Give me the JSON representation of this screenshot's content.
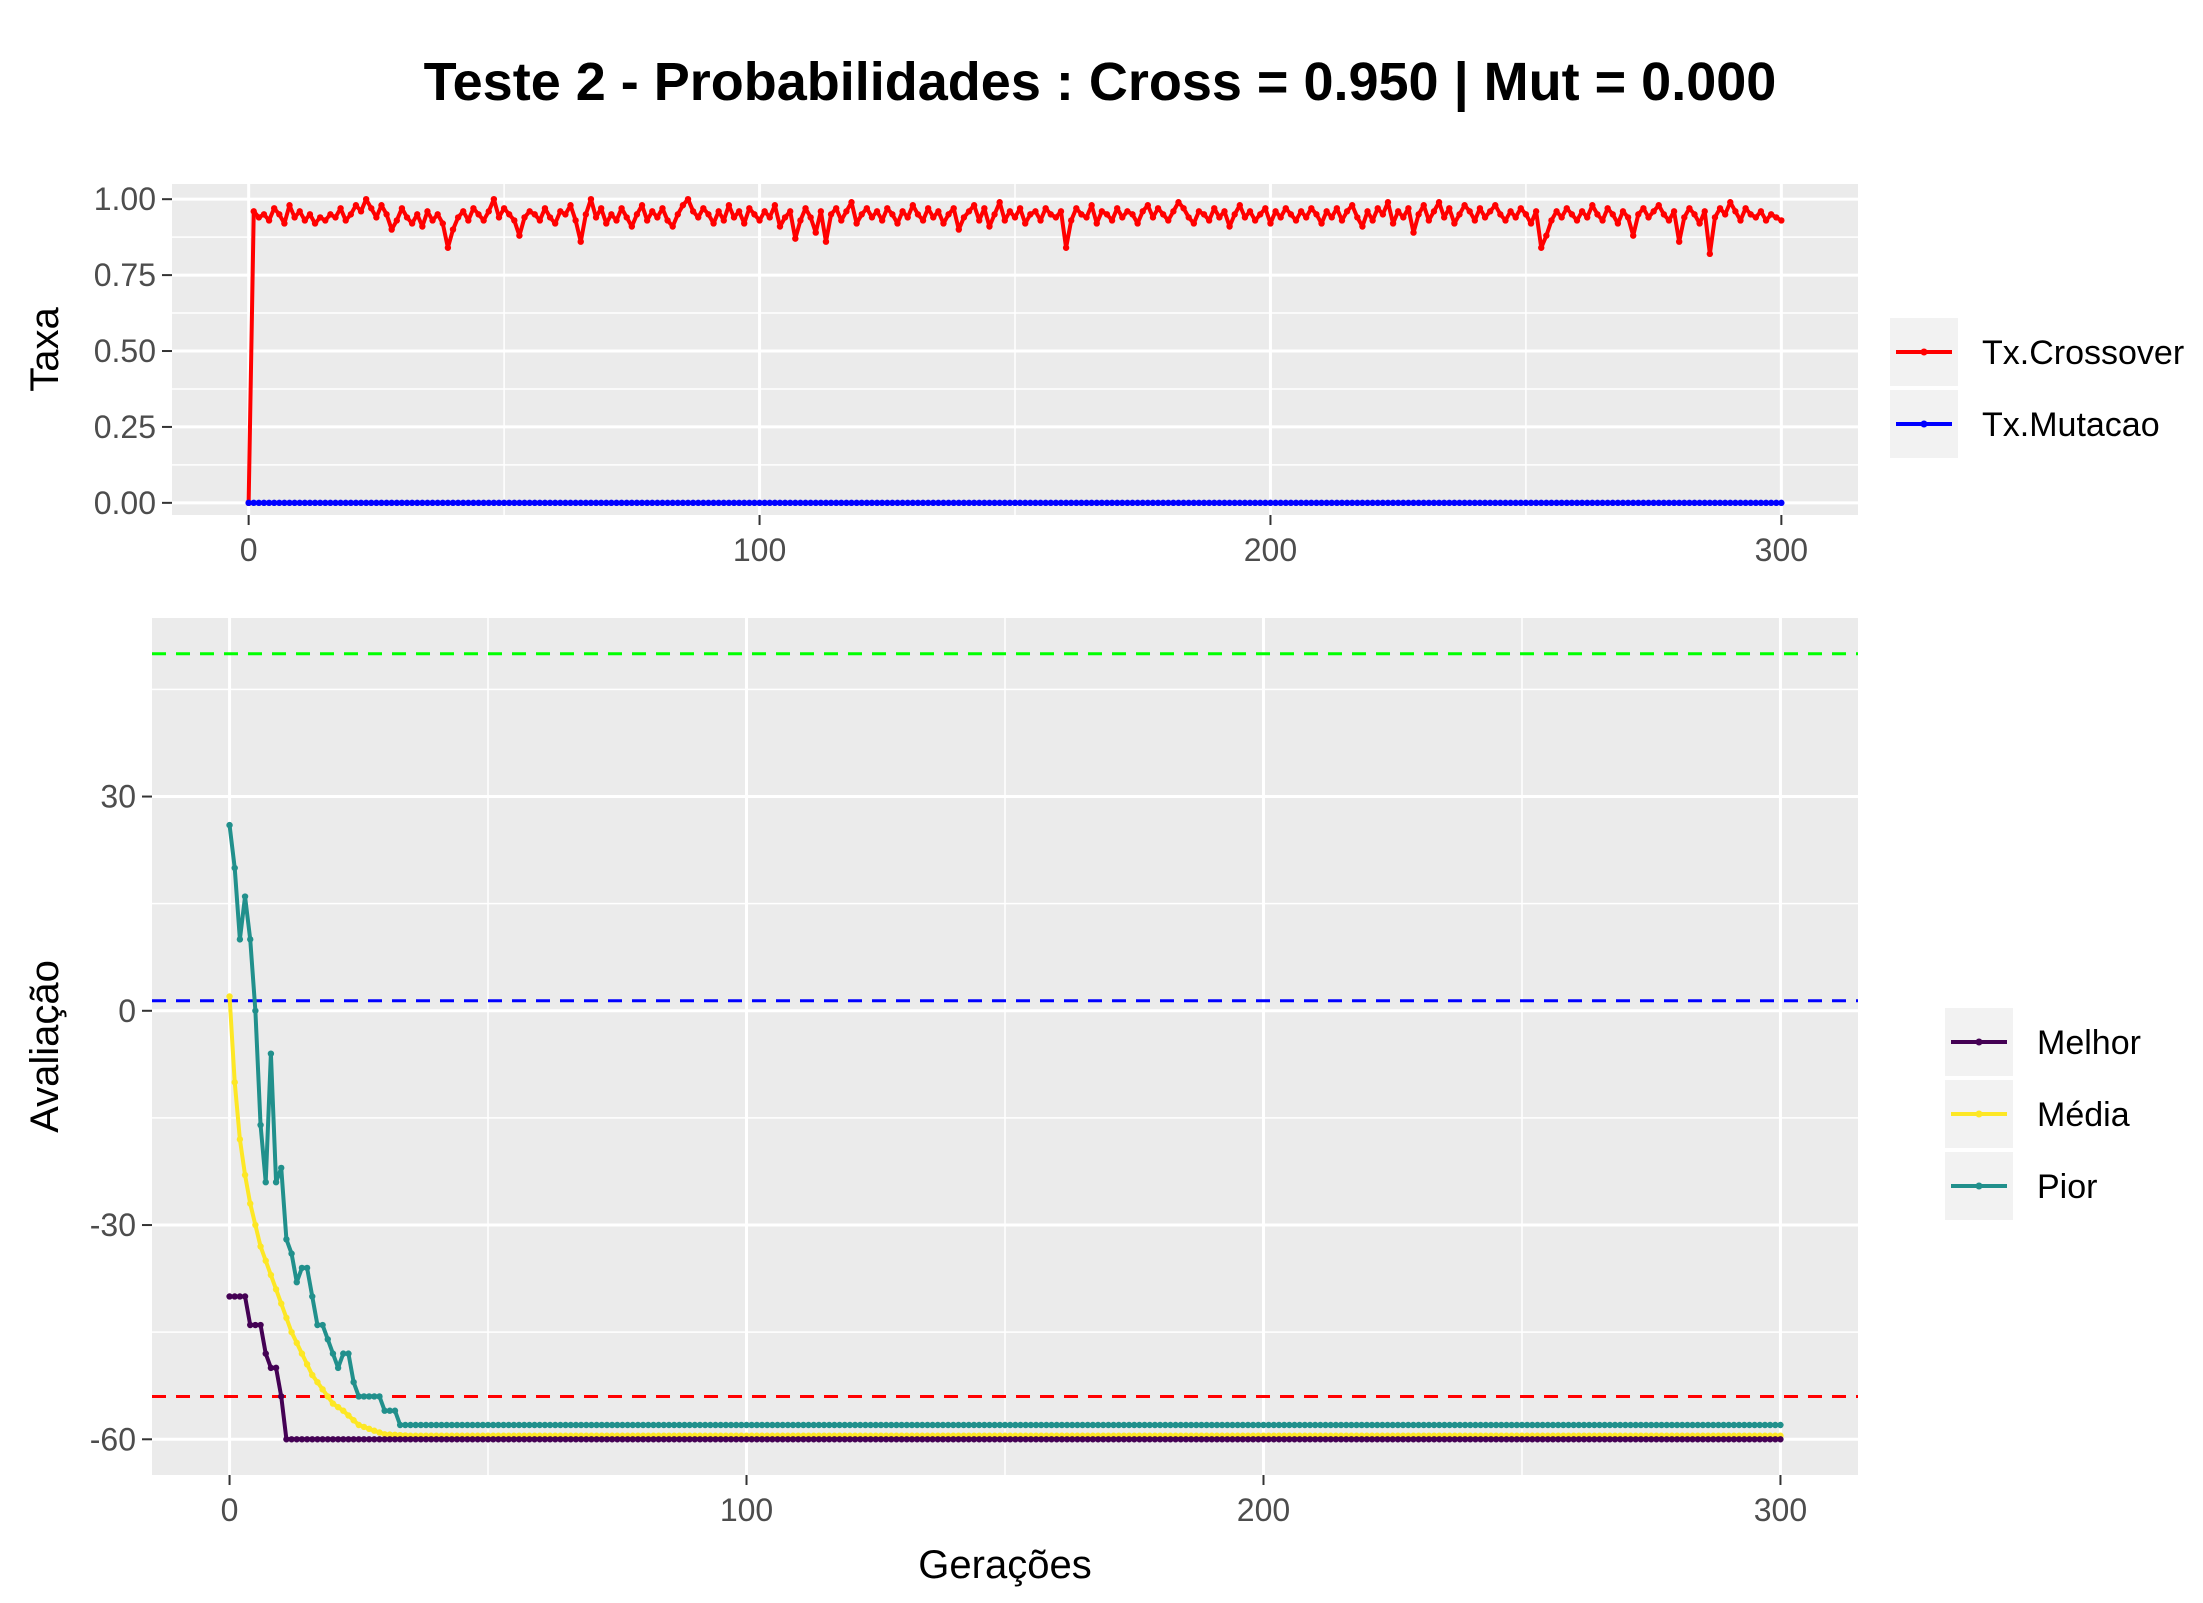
{
  "title": "Teste 2 - Probabilidades : Cross = 0.950 | Mut = 0.000",
  "chart_data": [
    {
      "type": "line",
      "ylabel": "Taxa",
      "xlabel": "",
      "xlim": [
        -15,
        315
      ],
      "ylim": [
        -0.04,
        1.05
      ],
      "xticks": [
        0,
        100,
        200,
        300
      ],
      "yticks": [
        0,
        0.25,
        0.5,
        0.75,
        1.0
      ],
      "ytick_labels": [
        "0.00",
        "0.25",
        "0.50",
        "0.75",
        "1.00"
      ],
      "xtick_labels": [
        "0",
        "100",
        "200",
        "300"
      ],
      "grid": true,
      "legend_position": "right",
      "series": [
        {
          "name": "Tx.Crossover",
          "color": "#ff0000",
          "x": [
            0,
            1,
            2,
            3,
            4,
            5,
            6,
            7,
            8,
            9,
            10,
            11,
            12,
            13,
            14,
            15,
            16,
            17,
            18,
            19,
            20,
            21,
            22,
            23,
            24,
            25,
            26,
            27,
            28,
            29,
            30,
            31,
            32,
            33,
            34,
            35,
            36,
            37,
            38,
            39,
            40,
            41,
            42,
            43,
            44,
            45,
            46,
            47,
            48,
            49,
            50,
            51,
            52,
            53,
            54,
            55,
            56,
            57,
            58,
            59,
            60,
            61,
            62,
            63,
            64,
            65,
            66,
            67,
            68,
            69,
            70,
            71,
            72,
            73,
            74,
            75,
            76,
            77,
            78,
            79,
            80,
            81,
            82,
            83,
            84,
            85,
            86,
            87,
            88,
            89,
            90,
            91,
            92,
            93,
            94,
            95,
            96,
            97,
            98,
            99,
            100,
            101,
            102,
            103,
            104,
            105,
            106,
            107,
            108,
            109,
            110,
            111,
            112,
            113,
            114,
            115,
            116,
            117,
            118,
            119,
            120,
            121,
            122,
            123,
            124,
            125,
            126,
            127,
            128,
            129,
            130,
            131,
            132,
            133,
            134,
            135,
            136,
            137,
            138,
            139,
            140,
            141,
            142,
            143,
            144,
            145,
            146,
            147,
            148,
            149,
            150,
            151,
            152,
            153,
            154,
            155,
            156,
            157,
            158,
            159,
            160,
            161,
            162,
            163,
            164,
            165,
            166,
            167,
            168,
            169,
            170,
            171,
            172,
            173,
            174,
            175,
            176,
            177,
            178,
            179,
            180,
            181,
            182,
            183,
            184,
            185,
            186,
            187,
            188,
            189,
            190,
            191,
            192,
            193,
            194,
            195,
            196,
            197,
            198,
            199,
            200,
            201,
            202,
            203,
            204,
            205,
            206,
            207,
            208,
            209,
            210,
            211,
            212,
            213,
            214,
            215,
            216,
            217,
            218,
            219,
            220,
            221,
            222,
            223,
            224,
            225,
            226,
            227,
            228,
            229,
            230,
            231,
            232,
            233,
            234,
            235,
            236,
            237,
            238,
            239,
            240,
            241,
            242,
            243,
            244,
            245,
            246,
            247,
            248,
            249,
            250,
            251,
            252,
            253,
            254,
            255,
            256,
            257,
            258,
            259,
            260,
            261,
            262,
            263,
            264,
            265,
            266,
            267,
            268,
            269,
            270,
            271,
            272,
            273,
            274,
            275,
            276,
            277,
            278,
            279,
            280,
            281,
            282,
            283,
            284,
            285,
            286,
            287,
            288,
            289,
            290,
            291,
            292,
            293,
            294,
            295,
            296,
            297,
            298,
            299,
            300
          ],
          "y": [
            0,
            0.96,
            0.94,
            0.95,
            0.93,
            0.97,
            0.95,
            0.92,
            0.98,
            0.94,
            0.96,
            0.93,
            0.95,
            0.92,
            0.94,
            0.93,
            0.95,
            0.94,
            0.97,
            0.93,
            0.95,
            0.98,
            0.96,
            1.0,
            0.97,
            0.94,
            0.98,
            0.95,
            0.9,
            0.93,
            0.97,
            0.94,
            0.92,
            0.95,
            0.91,
            0.96,
            0.93,
            0.95,
            0.92,
            0.84,
            0.9,
            0.94,
            0.96,
            0.93,
            0.97,
            0.95,
            0.93,
            0.96,
            1.0,
            0.94,
            0.97,
            0.95,
            0.93,
            0.88,
            0.94,
            0.96,
            0.95,
            0.93,
            0.97,
            0.94,
            0.92,
            0.96,
            0.95,
            0.98,
            0.93,
            0.86,
            0.95,
            1.0,
            0.94,
            0.97,
            0.92,
            0.95,
            0.93,
            0.97,
            0.94,
            0.91,
            0.95,
            0.98,
            0.93,
            0.96,
            0.94,
            0.97,
            0.93,
            0.91,
            0.95,
            0.98,
            1.0,
            0.96,
            0.94,
            0.97,
            0.95,
            0.92,
            0.96,
            0.93,
            0.98,
            0.94,
            0.96,
            0.92,
            0.97,
            0.95,
            0.93,
            0.96,
            0.94,
            0.98,
            0.91,
            0.94,
            0.96,
            0.87,
            0.93,
            0.97,
            0.94,
            0.89,
            0.96,
            0.86,
            0.95,
            0.97,
            0.93,
            0.96,
            0.99,
            0.92,
            0.95,
            0.97,
            0.94,
            0.96,
            0.93,
            0.97,
            0.95,
            0.92,
            0.96,
            0.94,
            0.98,
            0.95,
            0.93,
            0.97,
            0.94,
            0.96,
            0.92,
            0.95,
            0.97,
            0.9,
            0.94,
            0.96,
            0.98,
            0.93,
            0.97,
            0.91,
            0.95,
            0.99,
            0.93,
            0.96,
            0.94,
            0.97,
            0.92,
            0.95,
            0.96,
            0.93,
            0.97,
            0.95,
            0.94,
            0.96,
            0.84,
            0.93,
            0.97,
            0.95,
            0.94,
            0.98,
            0.92,
            0.96,
            0.95,
            0.93,
            0.97,
            0.94,
            0.96,
            0.95,
            0.92,
            0.96,
            0.98,
            0.94,
            0.97,
            0.95,
            0.93,
            0.96,
            0.99,
            0.97,
            0.94,
            0.92,
            0.96,
            0.95,
            0.93,
            0.97,
            0.94,
            0.96,
            0.91,
            0.95,
            0.98,
            0.94,
            0.96,
            0.93,
            0.95,
            0.97,
            0.92,
            0.96,
            0.94,
            0.97,
            0.95,
            0.93,
            0.96,
            0.94,
            0.97,
            0.95,
            0.92,
            0.96,
            0.94,
            0.97,
            0.93,
            0.96,
            0.98,
            0.94,
            0.91,
            0.96,
            0.93,
            0.97,
            0.95,
            0.99,
            0.92,
            0.96,
            0.94,
            0.97,
            0.89,
            0.95,
            0.98,
            0.93,
            0.96,
            0.99,
            0.94,
            0.97,
            0.92,
            0.95,
            0.98,
            0.96,
            0.93,
            0.97,
            0.94,
            0.96,
            0.98,
            0.95,
            0.93,
            0.96,
            0.94,
            0.97,
            0.95,
            0.92,
            0.96,
            0.84,
            0.88,
            0.93,
            0.96,
            0.94,
            0.97,
            0.95,
            0.93,
            0.96,
            0.94,
            0.98,
            0.95,
            0.93,
            0.97,
            0.95,
            0.92,
            0.96,
            0.94,
            0.88,
            0.95,
            0.97,
            0.94,
            0.96,
            0.98,
            0.95,
            0.93,
            0.96,
            0.86,
            0.94,
            0.97,
            0.95,
            0.92,
            0.96,
            0.82,
            0.94,
            0.97,
            0.95,
            0.99,
            0.96,
            0.93,
            0.97,
            0.95,
            0.94,
            0.96,
            0.93,
            0.95,
            0.94,
            0.93
          ]
        },
        {
          "name": "Tx.Mutacao",
          "color": "#0000ff",
          "x": [
            0,
            300
          ],
          "y": [
            0,
            0
          ],
          "constant_value": 0
        }
      ]
    },
    {
      "type": "line",
      "ylabel": "Avaliação",
      "xlabel": "Gerações",
      "xlim": [
        -15,
        315
      ],
      "ylim": [
        -65,
        55
      ],
      "xticks": [
        0,
        100,
        200,
        300
      ],
      "yticks": [
        -60,
        -30,
        0,
        30
      ],
      "xtick_labels": [
        "0",
        "100",
        "200",
        "300"
      ],
      "ytick_labels": [
        "-60",
        "-30",
        "0",
        "30"
      ],
      "grid": true,
      "legend_position": "right",
      "reference_lines": [
        {
          "y": 50,
          "color": "#00ff00",
          "style": "dashed"
        },
        {
          "y": 1.4,
          "color": "#0000ff",
          "style": "dashed"
        },
        {
          "y": -54,
          "color": "#ff0000",
          "style": "dashed"
        }
      ],
      "series": [
        {
          "name": "Melhor",
          "color": "#440154",
          "x": [
            0,
            1,
            2,
            3,
            4,
            5,
            6,
            7,
            8,
            9,
            10,
            11,
            12,
            20,
            30,
            50,
            80,
            100,
            150,
            200,
            250,
            300
          ],
          "y": [
            -40,
            -40,
            -40,
            -40,
            -44,
            -44,
            -44,
            -48,
            -50,
            -50,
            -54,
            -60,
            -60,
            -60,
            -60,
            -60,
            -60,
            -60,
            -60,
            -60,
            -60,
            -60
          ]
        },
        {
          "name": "Média",
          "color": "#fde725",
          "x": [
            0,
            1,
            2,
            3,
            4,
            5,
            6,
            7,
            8,
            9,
            10,
            12,
            14,
            16,
            18,
            20,
            22,
            25,
            28,
            30,
            35,
            40,
            60,
            100,
            150,
            200,
            250,
            300
          ],
          "y": [
            2,
            -10,
            -18,
            -23,
            -27,
            -30,
            -33,
            -35,
            -37,
            -39,
            -41,
            -45,
            -48,
            -51,
            -53,
            -55,
            -56,
            -58,
            -58.8,
            -59.3,
            -59.5,
            -59.5,
            -59.5,
            -59.5,
            -59.5,
            -59.5,
            -59.5,
            -59.5
          ]
        },
        {
          "name": "Pior",
          "color": "#21908c",
          "x": [
            0,
            1,
            2,
            3,
            4,
            5,
            6,
            7,
            8,
            9,
            10,
            11,
            12,
            13,
            14,
            15,
            16,
            17,
            18,
            19,
            20,
            21,
            22,
            23,
            24,
            25,
            26,
            27,
            28,
            29,
            30,
            31,
            32,
            33,
            35,
            40,
            60,
            100,
            150,
            200,
            250,
            300
          ],
          "y": [
            26,
            20,
            10,
            16,
            10,
            0,
            -16,
            -24,
            -6,
            -24,
            -22,
            -32,
            -34,
            -38,
            -36,
            -36,
            -40,
            -44,
            -44,
            -46,
            -48,
            -50,
            -48,
            -48,
            -52,
            -54,
            -54,
            -54,
            -54,
            -54,
            -56,
            -56,
            -56,
            -58,
            -58,
            -58,
            -58,
            -58,
            -58,
            -58,
            -58,
            -58
          ]
        }
      ]
    }
  ]
}
